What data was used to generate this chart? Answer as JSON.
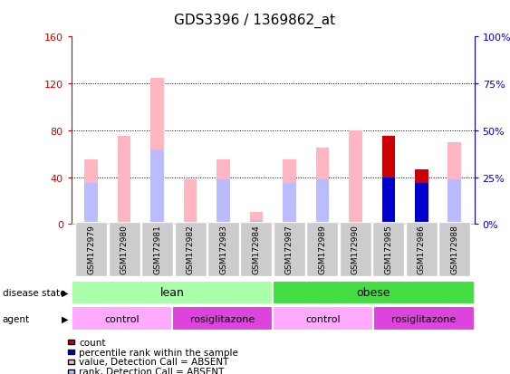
{
  "title": "GDS3396 / 1369862_at",
  "samples": [
    "GSM172979",
    "GSM172980",
    "GSM172981",
    "GSM172982",
    "GSM172983",
    "GSM172984",
    "GSM172987",
    "GSM172989",
    "GSM172990",
    "GSM172985",
    "GSM172986",
    "GSM172988"
  ],
  "value_absent": [
    55,
    75,
    125,
    38,
    55,
    10,
    55,
    65,
    80,
    0,
    0,
    70
  ],
  "rank_absent_pct": [
    22,
    0,
    40,
    0,
    24,
    2,
    22,
    24,
    0,
    0,
    0,
    24
  ],
  "count": [
    0,
    0,
    0,
    0,
    0,
    0,
    0,
    0,
    0,
    75,
    47,
    0
  ],
  "percentile_rank_pct": [
    0,
    0,
    0,
    0,
    0,
    0,
    0,
    0,
    0,
    25,
    22,
    0
  ],
  "ylim_left": [
    0,
    160
  ],
  "ylim_right": [
    0,
    100
  ],
  "yticks_left": [
    0,
    40,
    80,
    120,
    160
  ],
  "yticks_right": [
    0,
    25,
    50,
    75,
    100
  ],
  "ytick_labels_right": [
    "0%",
    "25%",
    "50%",
    "75%",
    "100%"
  ],
  "disease_state_groups": [
    {
      "label": "lean",
      "start": 0,
      "end": 6,
      "color": "#aaffaa"
    },
    {
      "label": "obese",
      "start": 6,
      "end": 12,
      "color": "#44dd44"
    }
  ],
  "agent_groups": [
    {
      "label": "control",
      "start": 0,
      "end": 3,
      "color": "#ffaaff"
    },
    {
      "label": "rosiglitazone",
      "start": 3,
      "end": 6,
      "color": "#dd44dd"
    },
    {
      "label": "control",
      "start": 6,
      "end": 9,
      "color": "#ffaaff"
    },
    {
      "label": "rosiglitazone",
      "start": 9,
      "end": 12,
      "color": "#dd44dd"
    }
  ],
  "color_value_absent": "#FFB6C1",
  "color_rank_absent": "#BBBBFF",
  "color_count": "#CC0000",
  "color_percentile": "#0000CC",
  "left_axis_color": "#CC0000",
  "right_axis_color": "#0000CC",
  "grid_color": "#000000",
  "xtick_area_color": "#CCCCCC",
  "bar_width": 0.4
}
